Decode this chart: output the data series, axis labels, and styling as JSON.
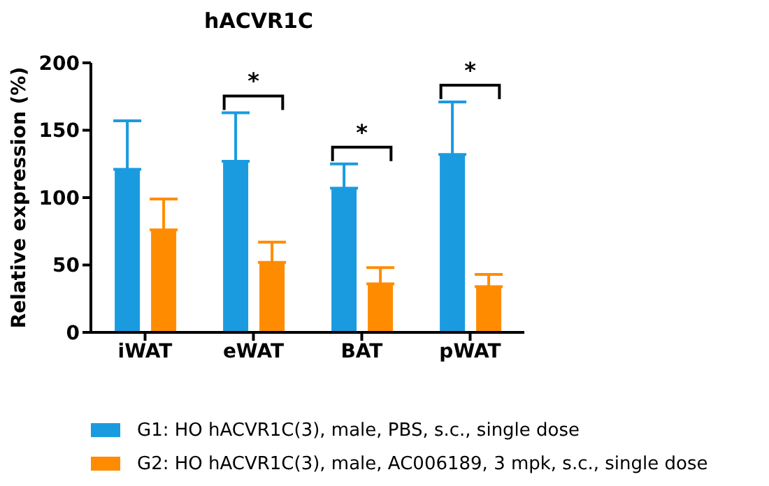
{
  "chart_data": {
    "type": "bar",
    "title": "hACVR1C",
    "ylabel": "Relative expression (%)",
    "categories": [
      "iWAT",
      "eWAT",
      "BAT",
      "pWAT"
    ],
    "series": [
      {
        "name": "G1: HO hACVR1C(3), male, PBS, s.c., single dose",
        "color": "#1a9be0",
        "values": [
          121,
          127,
          107,
          132
        ],
        "errors": [
          [
            121,
            157
          ],
          [
            127,
            163
          ],
          [
            107,
            125
          ],
          [
            132,
            171
          ]
        ]
      },
      {
        "name": "G2: HO hACVR1C(3), male, AC006189, 3 mpk, s.c., single dose",
        "color": "#ff8c00",
        "values": [
          76,
          52,
          36,
          34
        ],
        "errors": [
          [
            76,
            99
          ],
          [
            52,
            67
          ],
          [
            36,
            48
          ],
          [
            34,
            43
          ]
        ]
      }
    ],
    "ylim": [
      0,
      200
    ],
    "yticks": [
      0,
      50,
      100,
      150,
      200
    ],
    "grid": false,
    "legend": "bottom",
    "annotations": [
      "*",
      "*",
      "*"
    ]
  }
}
